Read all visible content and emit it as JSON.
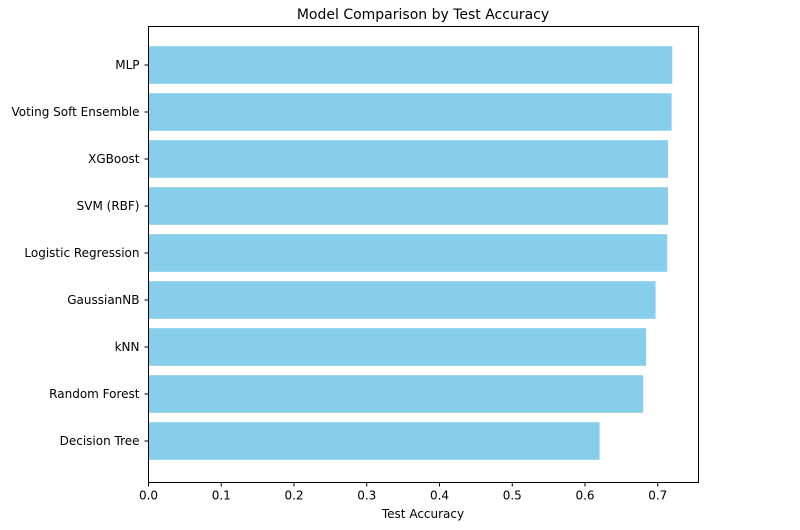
{
  "chart_data": {
    "type": "bar",
    "orientation": "horizontal",
    "title": "Model Comparison by Test Accuracy",
    "xlabel": "Test Accuracy",
    "ylabel": "",
    "categories": [
      "MLP",
      "Voting Soft Ensemble",
      "XGBoost",
      "SVM (RBF)",
      "Logistic Regression",
      "GaussianNB",
      "kNN",
      "Random Forest",
      "Decision Tree"
    ],
    "values": [
      0.72,
      0.719,
      0.714,
      0.714,
      0.713,
      0.697,
      0.684,
      0.68,
      0.62
    ],
    "xlim": [
      0,
      0.756
    ],
    "xticks": [
      "0.0",
      "0.1",
      "0.2",
      "0.3",
      "0.4",
      "0.5",
      "0.6",
      "0.7"
    ],
    "grid": false,
    "legend": "none",
    "bar_color": "#87CEEB"
  }
}
